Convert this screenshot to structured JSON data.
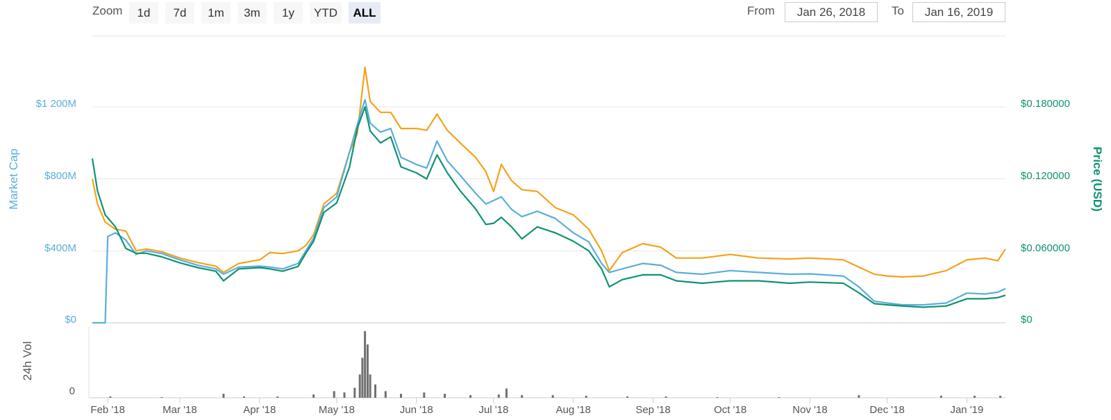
{
  "toolbar": {
    "zoom_label": "Zoom",
    "buttons": [
      "1d",
      "7d",
      "1m",
      "3m",
      "1y",
      "YTD",
      "ALL"
    ],
    "active": "ALL",
    "from_label": "From",
    "from_value": "Jan 26, 2018",
    "to_label": "To",
    "to_value": "Jan 16, 2019"
  },
  "colors": {
    "market_cap": "#5aaedb",
    "price": "#0f9272",
    "orange": "#f4a21b",
    "volume": "#707070"
  },
  "chart_data": [
    {
      "type": "line",
      "x_ticks": [
        "Feb '18",
        "Mar '18",
        "Apr '18",
        "May '18",
        "Jun '18",
        "Jul '18",
        "Aug '18",
        "Sep '18",
        "Oct '18",
        "Nov '18",
        "Dec '18",
        "Jan '19"
      ],
      "x_tick_dates": [
        "2018-02-01",
        "2018-03-01",
        "2018-04-01",
        "2018-05-01",
        "2018-06-01",
        "2018-07-01",
        "2018-08-01",
        "2018-09-01",
        "2018-10-01",
        "2018-11-01",
        "2018-12-01",
        "2019-01-01"
      ],
      "y_left": {
        "label": "Market Cap",
        "ticks": [
          "$0",
          "$400M",
          "$800M",
          "$1 200M"
        ],
        "range_millions": [
          0,
          1200
        ]
      },
      "y_right": {
        "label": "Price (USD)",
        "ticks": [
          "$0",
          "$0.060000",
          "$0.120000",
          "$0.180000"
        ],
        "range": [
          0,
          0.18
        ]
      },
      "series": [
        {
          "name": "Market Cap",
          "axis": "left",
          "unit": "USD millions",
          "points": [
            [
              "2018-01-26",
              0
            ],
            [
              "2018-01-31",
              0
            ],
            [
              "2018-02-01",
              480
            ],
            [
              "2018-02-04",
              500
            ],
            [
              "2018-02-08",
              460
            ],
            [
              "2018-02-12",
              380
            ],
            [
              "2018-02-16",
              400
            ],
            [
              "2018-02-22",
              385
            ],
            [
              "2018-03-01",
              350
            ],
            [
              "2018-03-08",
              320
            ],
            [
              "2018-03-15",
              300
            ],
            [
              "2018-03-18",
              270
            ],
            [
              "2018-03-24",
              310
            ],
            [
              "2018-04-01",
              315
            ],
            [
              "2018-04-05",
              310
            ],
            [
              "2018-04-10",
              300
            ],
            [
              "2018-04-16",
              330
            ],
            [
              "2018-04-19",
              400
            ],
            [
              "2018-04-22",
              470
            ],
            [
              "2018-04-26",
              640
            ],
            [
              "2018-05-01",
              700
            ],
            [
              "2018-05-06",
              950
            ],
            [
              "2018-05-09",
              1100
            ],
            [
              "2018-05-12",
              1240
            ],
            [
              "2018-05-14",
              1110
            ],
            [
              "2018-05-18",
              1060
            ],
            [
              "2018-05-22",
              1080
            ],
            [
              "2018-05-26",
              920
            ],
            [
              "2018-06-01",
              880
            ],
            [
              "2018-06-05",
              860
            ],
            [
              "2018-06-09",
              1010
            ],
            [
              "2018-06-13",
              900
            ],
            [
              "2018-06-18",
              820
            ],
            [
              "2018-06-24",
              720
            ],
            [
              "2018-06-28",
              660
            ],
            [
              "2018-07-01",
              680
            ],
            [
              "2018-07-04",
              700
            ],
            [
              "2018-07-08",
              630
            ],
            [
              "2018-07-12",
              590
            ],
            [
              "2018-07-18",
              620
            ],
            [
              "2018-07-25",
              580
            ],
            [
              "2018-08-01",
              500
            ],
            [
              "2018-08-07",
              450
            ],
            [
              "2018-08-12",
              330
            ],
            [
              "2018-08-15",
              280
            ],
            [
              "2018-08-20",
              300
            ],
            [
              "2018-08-28",
              330
            ],
            [
              "2018-09-04",
              320
            ],
            [
              "2018-09-10",
              280
            ],
            [
              "2018-09-20",
              270
            ],
            [
              "2018-10-01",
              290
            ],
            [
              "2018-10-12",
              280
            ],
            [
              "2018-10-24",
              270
            ],
            [
              "2018-11-01",
              272
            ],
            [
              "2018-11-14",
              260
            ],
            [
              "2018-11-20",
              200
            ],
            [
              "2018-11-26",
              120
            ],
            [
              "2018-12-01",
              110
            ],
            [
              "2018-12-07",
              100
            ],
            [
              "2018-12-15",
              100
            ],
            [
              "2018-12-24",
              110
            ],
            [
              "2019-01-01",
              165
            ],
            [
              "2019-01-08",
              160
            ],
            [
              "2019-01-13",
              170
            ],
            [
              "2019-01-16",
              190
            ]
          ]
        },
        {
          "name": "Price (USD)",
          "axis": "right",
          "unit": "USD",
          "points": [
            [
              "2018-01-26",
              0.137
            ],
            [
              "2018-01-28",
              0.11
            ],
            [
              "2018-01-31",
              0.09
            ],
            [
              "2018-02-04",
              0.08
            ],
            [
              "2018-02-08",
              0.062
            ],
            [
              "2018-02-12",
              0.058
            ],
            [
              "2018-02-16",
              0.058
            ],
            [
              "2018-02-22",
              0.055
            ],
            [
              "2018-03-01",
              0.05
            ],
            [
              "2018-03-08",
              0.046
            ],
            [
              "2018-03-15",
              0.043
            ],
            [
              "2018-03-18",
              0.035
            ],
            [
              "2018-03-24",
              0.045
            ],
            [
              "2018-04-01",
              0.046
            ],
            [
              "2018-04-05",
              0.045
            ],
            [
              "2018-04-10",
              0.043
            ],
            [
              "2018-04-16",
              0.047
            ],
            [
              "2018-04-19",
              0.058
            ],
            [
              "2018-04-22",
              0.068
            ],
            [
              "2018-04-26",
              0.092
            ],
            [
              "2018-05-01",
              0.1
            ],
            [
              "2018-05-06",
              0.13
            ],
            [
              "2018-05-09",
              0.162
            ],
            [
              "2018-05-12",
              0.18
            ],
            [
              "2018-05-14",
              0.16
            ],
            [
              "2018-05-18",
              0.15
            ],
            [
              "2018-05-22",
              0.155
            ],
            [
              "2018-05-26",
              0.13
            ],
            [
              "2018-06-01",
              0.125
            ],
            [
              "2018-06-05",
              0.12
            ],
            [
              "2018-06-09",
              0.14
            ],
            [
              "2018-06-13",
              0.125
            ],
            [
              "2018-06-18",
              0.11
            ],
            [
              "2018-06-24",
              0.095
            ],
            [
              "2018-06-28",
              0.082
            ],
            [
              "2018-07-01",
              0.083
            ],
            [
              "2018-07-04",
              0.088
            ],
            [
              "2018-07-08",
              0.08
            ],
            [
              "2018-07-12",
              0.07
            ],
            [
              "2018-07-18",
              0.08
            ],
            [
              "2018-07-25",
              0.075
            ],
            [
              "2018-08-01",
              0.068
            ],
            [
              "2018-08-07",
              0.06
            ],
            [
              "2018-08-12",
              0.045
            ],
            [
              "2018-08-15",
              0.03
            ],
            [
              "2018-08-20",
              0.036
            ],
            [
              "2018-08-28",
              0.04
            ],
            [
              "2018-09-04",
              0.04
            ],
            [
              "2018-09-10",
              0.035
            ],
            [
              "2018-09-20",
              0.033
            ],
            [
              "2018-10-01",
              0.035
            ],
            [
              "2018-10-12",
              0.035
            ],
            [
              "2018-10-24",
              0.033
            ],
            [
              "2018-11-01",
              0.034
            ],
            [
              "2018-11-14",
              0.033
            ],
            [
              "2018-11-20",
              0.025
            ],
            [
              "2018-11-26",
              0.016
            ],
            [
              "2018-12-01",
              0.015
            ],
            [
              "2018-12-07",
              0.014
            ],
            [
              "2018-12-15",
              0.013
            ],
            [
              "2018-12-24",
              0.014
            ],
            [
              "2019-01-01",
              0.02
            ],
            [
              "2019-01-08",
              0.02
            ],
            [
              "2019-01-13",
              0.021
            ],
            [
              "2019-01-16",
              0.023
            ]
          ]
        },
        {
          "axis": "left",
          "unit": "USD millions",
          "points": [
            [
              "2018-01-26",
              800
            ],
            [
              "2018-01-28",
              660
            ],
            [
              "2018-01-31",
              560
            ],
            [
              "2018-02-04",
              520
            ],
            [
              "2018-02-08",
              510
            ],
            [
              "2018-02-12",
              400
            ],
            [
              "2018-02-16",
              410
            ],
            [
              "2018-02-22",
              395
            ],
            [
              "2018-03-01",
              360
            ],
            [
              "2018-03-08",
              335
            ],
            [
              "2018-03-15",
              315
            ],
            [
              "2018-03-18",
              280
            ],
            [
              "2018-03-24",
              330
            ],
            [
              "2018-04-01",
              350
            ],
            [
              "2018-04-05",
              390
            ],
            [
              "2018-04-10",
              385
            ],
            [
              "2018-04-16",
              400
            ],
            [
              "2018-04-19",
              430
            ],
            [
              "2018-04-22",
              490
            ],
            [
              "2018-04-26",
              660
            ],
            [
              "2018-05-01",
              720
            ],
            [
              "2018-05-06",
              950
            ],
            [
              "2018-05-09",
              1050
            ],
            [
              "2018-05-12",
              1420
            ],
            [
              "2018-05-14",
              1230
            ],
            [
              "2018-05-18",
              1170
            ],
            [
              "2018-05-22",
              1170
            ],
            [
              "2018-05-26",
              1080
            ],
            [
              "2018-06-01",
              1080
            ],
            [
              "2018-06-05",
              1070
            ],
            [
              "2018-06-09",
              1160
            ],
            [
              "2018-06-13",
              1070
            ],
            [
              "2018-06-18",
              1000
            ],
            [
              "2018-06-24",
              920
            ],
            [
              "2018-06-28",
              840
            ],
            [
              "2018-07-01",
              730
            ],
            [
              "2018-07-04",
              880
            ],
            [
              "2018-07-08",
              790
            ],
            [
              "2018-07-12",
              740
            ],
            [
              "2018-07-18",
              730
            ],
            [
              "2018-07-25",
              640
            ],
            [
              "2018-08-01",
              600
            ],
            [
              "2018-08-07",
              520
            ],
            [
              "2018-08-12",
              400
            ],
            [
              "2018-08-15",
              290
            ],
            [
              "2018-08-20",
              390
            ],
            [
              "2018-08-28",
              440
            ],
            [
              "2018-09-04",
              420
            ],
            [
              "2018-09-10",
              360
            ],
            [
              "2018-09-20",
              360
            ],
            [
              "2018-10-01",
              380
            ],
            [
              "2018-10-12",
              360
            ],
            [
              "2018-10-24",
              355
            ],
            [
              "2018-11-01",
              360
            ],
            [
              "2018-11-14",
              350
            ],
            [
              "2018-11-20",
              310
            ],
            [
              "2018-11-26",
              270
            ],
            [
              "2018-12-01",
              260
            ],
            [
              "2018-12-07",
              255
            ],
            [
              "2018-12-15",
              260
            ],
            [
              "2018-12-24",
              290
            ],
            [
              "2019-01-01",
              350
            ],
            [
              "2019-01-08",
              360
            ],
            [
              "2019-01-13",
              345
            ],
            [
              "2019-01-16",
              410
            ]
          ]
        }
      ]
    },
    {
      "type": "bar",
      "y_label": "24h Vol",
      "y_ticks": [
        "0"
      ],
      "y_range_relative": [
        0,
        1
      ],
      "points": [
        [
          "2018-02-02",
          0.02
        ],
        [
          "2018-02-22",
          0.01
        ],
        [
          "2018-03-18",
          0.06
        ],
        [
          "2018-03-26",
          0.02
        ],
        [
          "2018-04-08",
          0.02
        ],
        [
          "2018-04-22",
          0.05
        ],
        [
          "2018-04-30",
          0.1
        ],
        [
          "2018-05-04",
          0.08
        ],
        [
          "2018-05-08",
          0.15
        ],
        [
          "2018-05-10",
          0.35
        ],
        [
          "2018-05-11",
          0.6
        ],
        [
          "2018-05-12",
          1.0
        ],
        [
          "2018-05-13",
          0.8
        ],
        [
          "2018-05-14",
          0.35
        ],
        [
          "2018-05-16",
          0.2
        ],
        [
          "2018-05-20",
          0.1
        ],
        [
          "2018-05-26",
          0.06
        ],
        [
          "2018-06-04",
          0.08
        ],
        [
          "2018-06-12",
          0.06
        ],
        [
          "2018-06-22",
          0.04
        ],
        [
          "2018-07-03",
          0.05
        ],
        [
          "2018-07-06",
          0.14
        ],
        [
          "2018-07-12",
          0.04
        ],
        [
          "2018-07-24",
          0.04
        ],
        [
          "2018-08-06",
          0.03
        ],
        [
          "2018-08-22",
          0.02
        ],
        [
          "2018-09-06",
          0.02
        ],
        [
          "2018-09-26",
          0.01
        ],
        [
          "2018-10-20",
          0.01
        ],
        [
          "2018-11-20",
          0.04
        ],
        [
          "2018-12-22",
          0.03
        ],
        [
          "2019-01-04",
          0.03
        ],
        [
          "2019-01-14",
          0.03
        ]
      ]
    }
  ]
}
